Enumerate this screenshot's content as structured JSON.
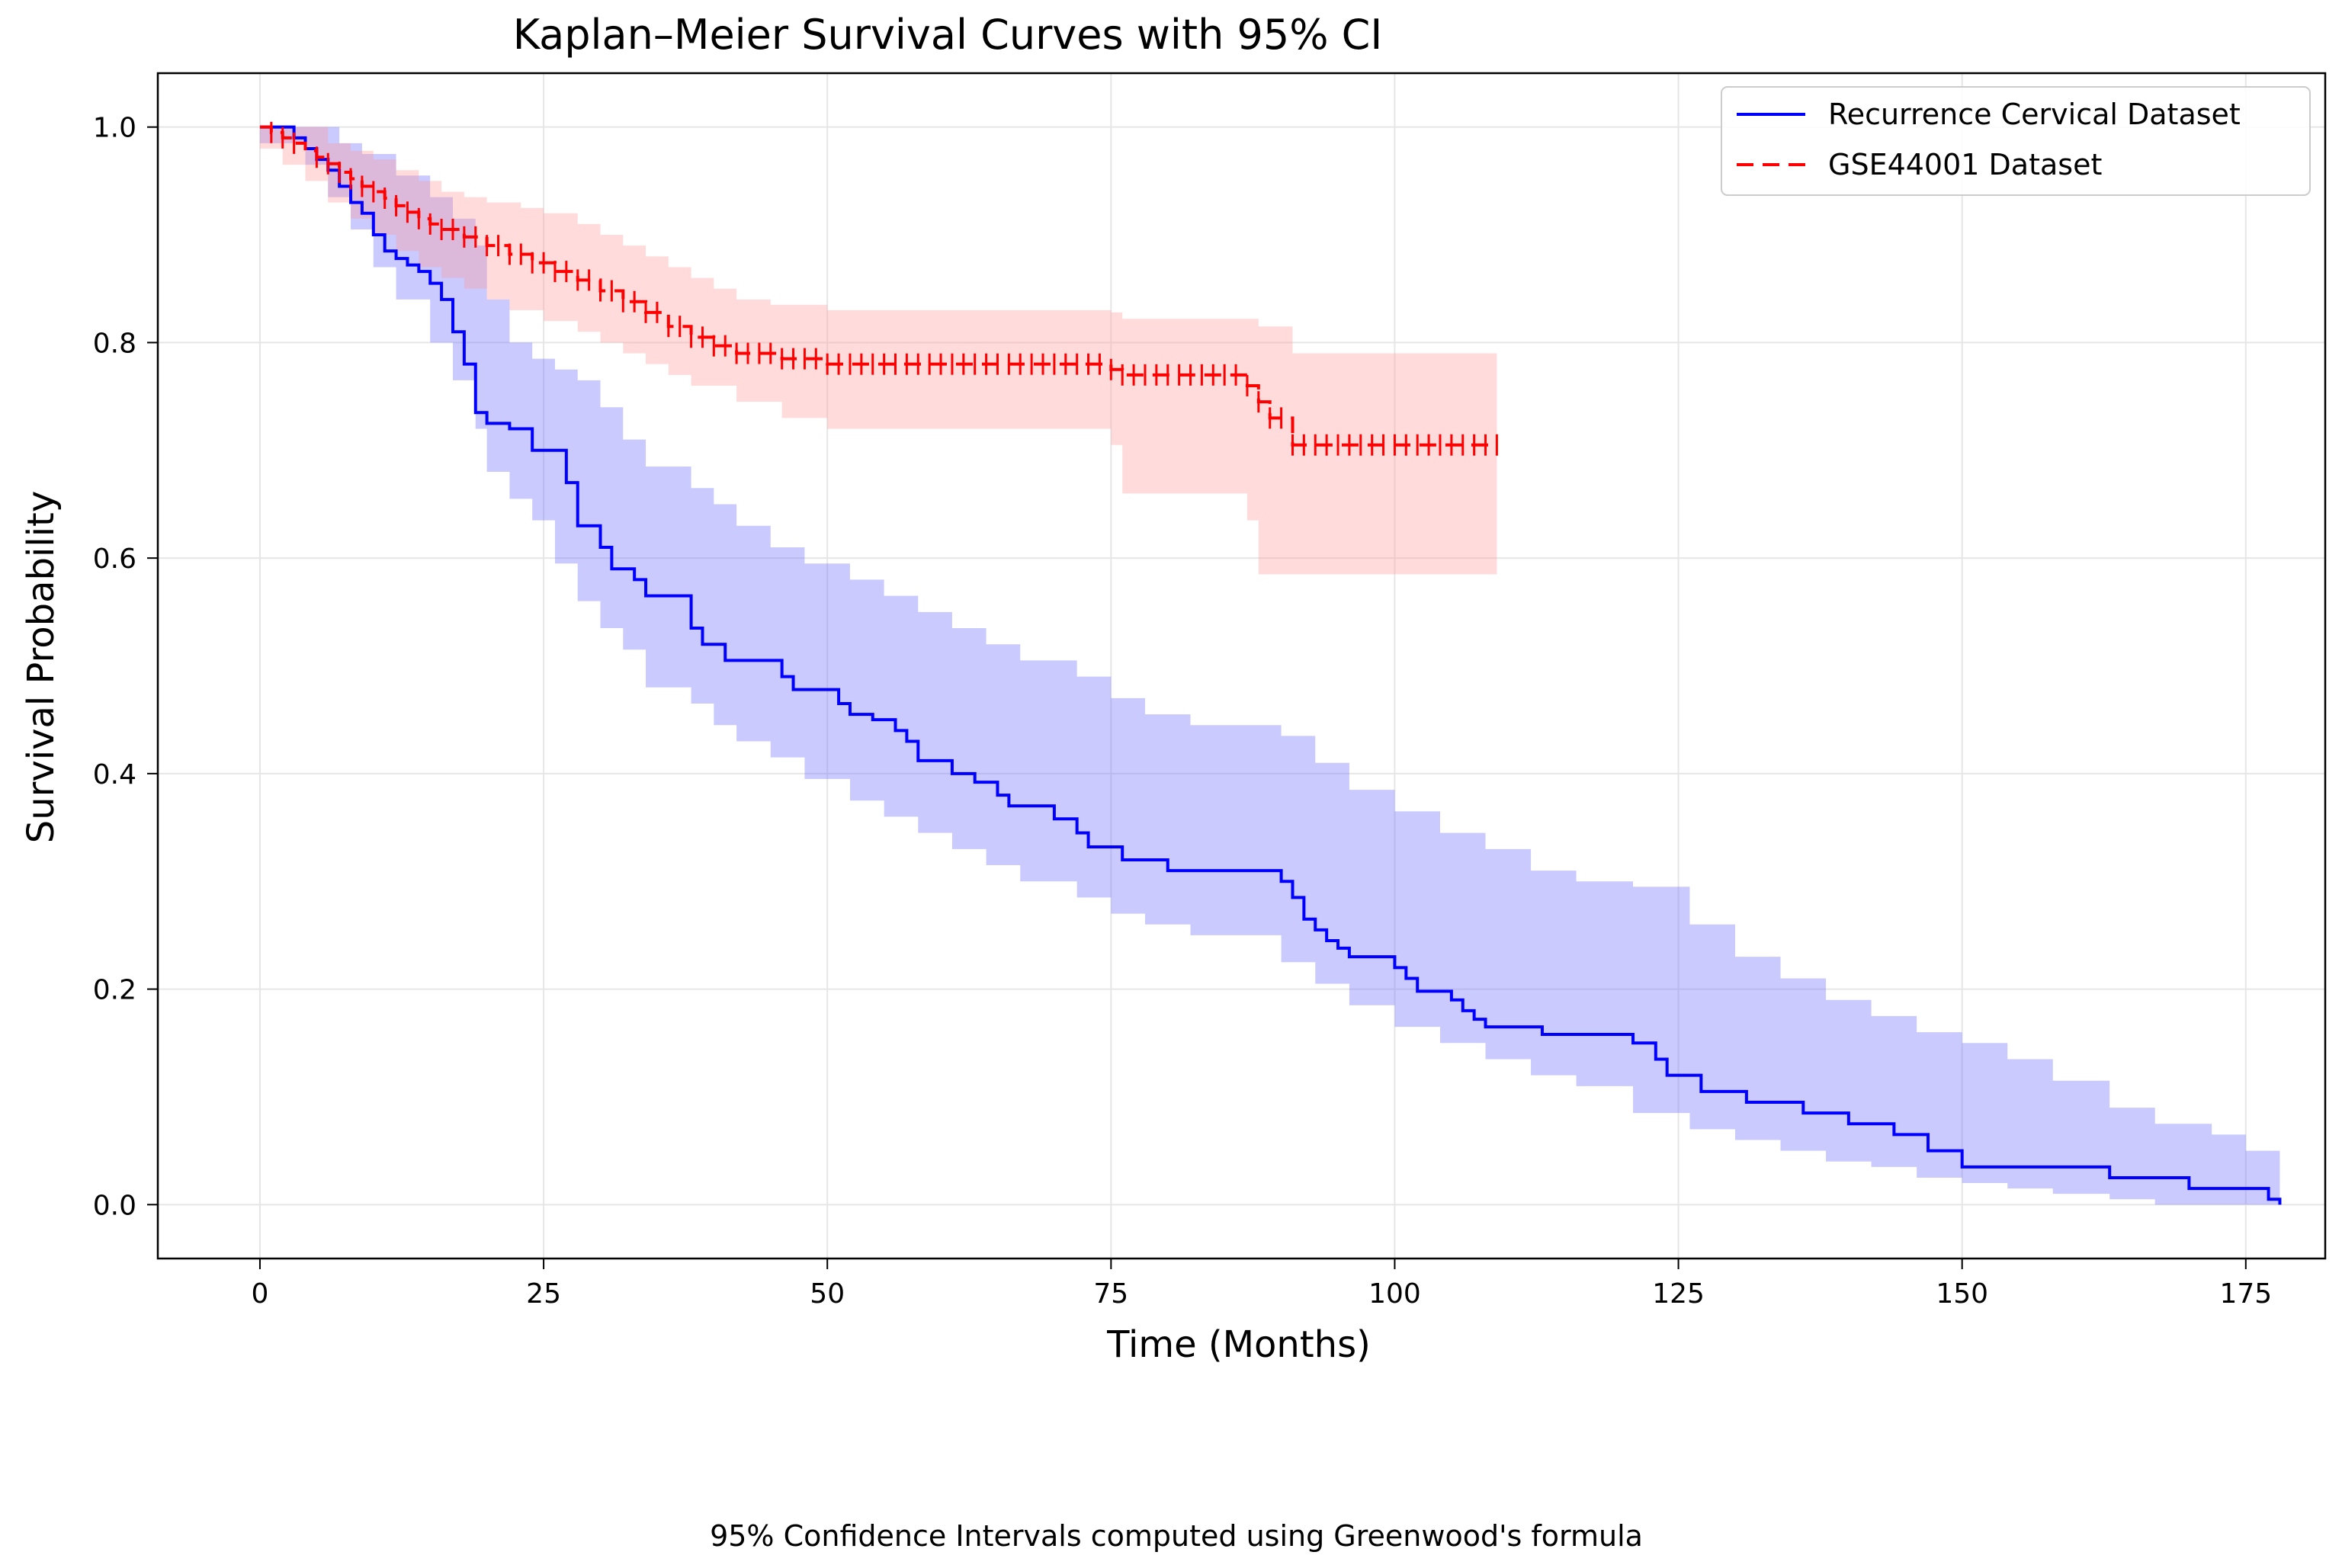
{
  "chart_data": {
    "type": "line",
    "title": "Kaplan–Meier Survival Curves with 95% CI",
    "xlabel": "Time (Months)",
    "ylabel": "Survival Probability",
    "xlim": [
      -9,
      182
    ],
    "ylim": [
      -0.05,
      1.05
    ],
    "xticks": [
      0,
      25,
      50,
      75,
      100,
      125,
      150,
      175
    ],
    "yticks": [
      0.0,
      0.2,
      0.4,
      0.6,
      0.8,
      1.0
    ],
    "xtick_labels": [
      "0",
      "25",
      "50",
      "75",
      "100",
      "125",
      "150",
      "175"
    ],
    "ytick_labels": [
      "0.0",
      "0.2",
      "0.4",
      "0.6",
      "0.8",
      "1.0"
    ],
    "grid": true,
    "legend_position": "top-right",
    "series": [
      {
        "name": "Recurrence Cervical Dataset",
        "color": "#0000ff",
        "ci_color": "#6666ff",
        "line_style": "solid",
        "step": [
          [
            0,
            1.0
          ],
          [
            3,
            0.99
          ],
          [
            4,
            0.98
          ],
          [
            5,
            0.97
          ],
          [
            6,
            0.96
          ],
          [
            7,
            0.945
          ],
          [
            8,
            0.93
          ],
          [
            9,
            0.92
          ],
          [
            10,
            0.9
          ],
          [
            11,
            0.885
          ],
          [
            12,
            0.878
          ],
          [
            13,
            0.872
          ],
          [
            14,
            0.866
          ],
          [
            15,
            0.855
          ],
          [
            16,
            0.84
          ],
          [
            17,
            0.81
          ],
          [
            18,
            0.78
          ],
          [
            19,
            0.735
          ],
          [
            20,
            0.725
          ],
          [
            22,
            0.72
          ],
          [
            24,
            0.7
          ],
          [
            27,
            0.67
          ],
          [
            28,
            0.63
          ],
          [
            30,
            0.61
          ],
          [
            31,
            0.59
          ],
          [
            33,
            0.58
          ],
          [
            34,
            0.565
          ],
          [
            38,
            0.535
          ],
          [
            39,
            0.52
          ],
          [
            41,
            0.505
          ],
          [
            46,
            0.49
          ],
          [
            47,
            0.478
          ],
          [
            51,
            0.465
          ],
          [
            52,
            0.455
          ],
          [
            54,
            0.45
          ],
          [
            56,
            0.44
          ],
          [
            57,
            0.43
          ],
          [
            58,
            0.412
          ],
          [
            61,
            0.4
          ],
          [
            63,
            0.392
          ],
          [
            65,
            0.38
          ],
          [
            66,
            0.37
          ],
          [
            70,
            0.358
          ],
          [
            72,
            0.345
          ],
          [
            73,
            0.332
          ],
          [
            76,
            0.32
          ],
          [
            80,
            0.31
          ],
          [
            90,
            0.3
          ],
          [
            91,
            0.285
          ],
          [
            92,
            0.265
          ],
          [
            93,
            0.255
          ],
          [
            94,
            0.245
          ],
          [
            95,
            0.238
          ],
          [
            96,
            0.23
          ],
          [
            100,
            0.22
          ],
          [
            101,
            0.21
          ],
          [
            102,
            0.198
          ],
          [
            105,
            0.19
          ],
          [
            106,
            0.18
          ],
          [
            107,
            0.172
          ],
          [
            108,
            0.165
          ],
          [
            113,
            0.158
          ],
          [
            121,
            0.15
          ],
          [
            123,
            0.135
          ],
          [
            124,
            0.12
          ],
          [
            127,
            0.105
          ],
          [
            131,
            0.095
          ],
          [
            136,
            0.085
          ],
          [
            140,
            0.075
          ],
          [
            144,
            0.065
          ],
          [
            147,
            0.05
          ],
          [
            150,
            0.035
          ],
          [
            163,
            0.025
          ],
          [
            170,
            0.015
          ],
          [
            177,
            0.005
          ],
          [
            178,
            0.0
          ]
        ],
        "ci_upper": [
          [
            0,
            1.0
          ],
          [
            5,
            1.0
          ],
          [
            7,
            0.985
          ],
          [
            9,
            0.975
          ],
          [
            12,
            0.955
          ],
          [
            15,
            0.935
          ],
          [
            17,
            0.915
          ],
          [
            19,
            0.89
          ],
          [
            20,
            0.84
          ],
          [
            22,
            0.8
          ],
          [
            24,
            0.785
          ],
          [
            26,
            0.775
          ],
          [
            28,
            0.765
          ],
          [
            30,
            0.74
          ],
          [
            32,
            0.71
          ],
          [
            34,
            0.685
          ],
          [
            38,
            0.665
          ],
          [
            40,
            0.65
          ],
          [
            42,
            0.63
          ],
          [
            45,
            0.61
          ],
          [
            48,
            0.595
          ],
          [
            52,
            0.58
          ],
          [
            55,
            0.565
          ],
          [
            58,
            0.55
          ],
          [
            61,
            0.535
          ],
          [
            64,
            0.52
          ],
          [
            67,
            0.505
          ],
          [
            72,
            0.49
          ],
          [
            75,
            0.47
          ],
          [
            78,
            0.455
          ],
          [
            82,
            0.445
          ],
          [
            90,
            0.435
          ],
          [
            93,
            0.41
          ],
          [
            96,
            0.385
          ],
          [
            100,
            0.365
          ],
          [
            104,
            0.345
          ],
          [
            108,
            0.33
          ],
          [
            112,
            0.31
          ],
          [
            116,
            0.3
          ],
          [
            121,
            0.295
          ],
          [
            126,
            0.26
          ],
          [
            130,
            0.23
          ],
          [
            134,
            0.21
          ],
          [
            138,
            0.19
          ],
          [
            142,
            0.175
          ],
          [
            146,
            0.16
          ],
          [
            150,
            0.15
          ],
          [
            154,
            0.135
          ],
          [
            158,
            0.115
          ],
          [
            163,
            0.09
          ],
          [
            167,
            0.075
          ],
          [
            172,
            0.065
          ],
          [
            175,
            0.05
          ],
          [
            178,
            0.04
          ]
        ],
        "ci_lower": [
          [
            0,
            1.0
          ],
          [
            4,
            0.985
          ],
          [
            6,
            0.965
          ],
          [
            8,
            0.935
          ],
          [
            10,
            0.905
          ],
          [
            12,
            0.87
          ],
          [
            15,
            0.84
          ],
          [
            17,
            0.8
          ],
          [
            19,
            0.765
          ],
          [
            20,
            0.72
          ],
          [
            22,
            0.68
          ],
          [
            24,
            0.655
          ],
          [
            26,
            0.635
          ],
          [
            28,
            0.595
          ],
          [
            30,
            0.56
          ],
          [
            32,
            0.535
          ],
          [
            34,
            0.515
          ],
          [
            38,
            0.48
          ],
          [
            40,
            0.465
          ],
          [
            42,
            0.445
          ],
          [
            45,
            0.43
          ],
          [
            48,
            0.415
          ],
          [
            52,
            0.395
          ],
          [
            55,
            0.375
          ],
          [
            58,
            0.36
          ],
          [
            61,
            0.345
          ],
          [
            64,
            0.33
          ],
          [
            67,
            0.315
          ],
          [
            72,
            0.3
          ],
          [
            75,
            0.285
          ],
          [
            78,
            0.27
          ],
          [
            82,
            0.26
          ],
          [
            90,
            0.25
          ],
          [
            93,
            0.225
          ],
          [
            96,
            0.205
          ],
          [
            100,
            0.185
          ],
          [
            104,
            0.165
          ],
          [
            108,
            0.15
          ],
          [
            112,
            0.135
          ],
          [
            116,
            0.12
          ],
          [
            121,
            0.11
          ],
          [
            126,
            0.085
          ],
          [
            130,
            0.07
          ],
          [
            134,
            0.06
          ],
          [
            138,
            0.05
          ],
          [
            142,
            0.04
          ],
          [
            146,
            0.035
          ],
          [
            150,
            0.025
          ],
          [
            154,
            0.02
          ],
          [
            158,
            0.015
          ],
          [
            163,
            0.01
          ],
          [
            167,
            0.005
          ],
          [
            172,
            0.0
          ],
          [
            178,
            0.0
          ]
        ]
      },
      {
        "name": "GSE44001 Dataset",
        "color": "#ff0000",
        "ci_color": "#ff9999",
        "line_style": "dashed",
        "step": [
          [
            0,
            1.0
          ],
          [
            1,
            0.995
          ],
          [
            2,
            0.99
          ],
          [
            3,
            0.985
          ],
          [
            4,
            0.978
          ],
          [
            5,
            0.972
          ],
          [
            6,
            0.966
          ],
          [
            7,
            0.958
          ],
          [
            8,
            0.952
          ],
          [
            9,
            0.945
          ],
          [
            10,
            0.94
          ],
          [
            11,
            0.934
          ],
          [
            12,
            0.927
          ],
          [
            13,
            0.921
          ],
          [
            14,
            0.915
          ],
          [
            15,
            0.91
          ],
          [
            16,
            0.905
          ],
          [
            18,
            0.898
          ],
          [
            20,
            0.89
          ],
          [
            22,
            0.882
          ],
          [
            24,
            0.874
          ],
          [
            26,
            0.866
          ],
          [
            28,
            0.858
          ],
          [
            30,
            0.848
          ],
          [
            32,
            0.838
          ],
          [
            34,
            0.828
          ],
          [
            36,
            0.815
          ],
          [
            38,
            0.805
          ],
          [
            40,
            0.797
          ],
          [
            42,
            0.79
          ],
          [
            46,
            0.785
          ],
          [
            50,
            0.78
          ],
          [
            60,
            0.78
          ],
          [
            75,
            0.775
          ],
          [
            76,
            0.77
          ],
          [
            87,
            0.76
          ],
          [
            88,
            0.745
          ],
          [
            89,
            0.73
          ],
          [
            91,
            0.705
          ],
          [
            109,
            0.705
          ]
        ],
        "ci_upper": [
          [
            0,
            1.0
          ],
          [
            4,
            1.0
          ],
          [
            6,
            0.985
          ],
          [
            8,
            0.978
          ],
          [
            10,
            0.97
          ],
          [
            12,
            0.96
          ],
          [
            14,
            0.95
          ],
          [
            16,
            0.94
          ],
          [
            18,
            0.935
          ],
          [
            20,
            0.93
          ],
          [
            23,
            0.925
          ],
          [
            25,
            0.92
          ],
          [
            28,
            0.91
          ],
          [
            30,
            0.9
          ],
          [
            32,
            0.89
          ],
          [
            34,
            0.88
          ],
          [
            36,
            0.87
          ],
          [
            38,
            0.86
          ],
          [
            40,
            0.85
          ],
          [
            42,
            0.84
          ],
          [
            45,
            0.835
          ],
          [
            50,
            0.83
          ],
          [
            75,
            0.828
          ],
          [
            76,
            0.822
          ],
          [
            88,
            0.815
          ],
          [
            91,
            0.79
          ],
          [
            109,
            0.79
          ]
        ],
        "ci_lower": [
          [
            0,
            1.0
          ],
          [
            2,
            0.98
          ],
          [
            4,
            0.965
          ],
          [
            6,
            0.95
          ],
          [
            8,
            0.93
          ],
          [
            10,
            0.915
          ],
          [
            12,
            0.9
          ],
          [
            14,
            0.885
          ],
          [
            16,
            0.87
          ],
          [
            18,
            0.86
          ],
          [
            20,
            0.85
          ],
          [
            22,
            0.84
          ],
          [
            25,
            0.83
          ],
          [
            28,
            0.82
          ],
          [
            30,
            0.81
          ],
          [
            32,
            0.8
          ],
          [
            34,
            0.79
          ],
          [
            36,
            0.78
          ],
          [
            38,
            0.77
          ],
          [
            42,
            0.76
          ],
          [
            46,
            0.745
          ],
          [
            50,
            0.73
          ],
          [
            75,
            0.72
          ],
          [
            76,
            0.705
          ],
          [
            87,
            0.66
          ],
          [
            88,
            0.635
          ],
          [
            91,
            0.585
          ],
          [
            109,
            0.585
          ]
        ],
        "censored": [
          1,
          2,
          3,
          5,
          6,
          7,
          8,
          9,
          10,
          11,
          12,
          13,
          14,
          15,
          16,
          17,
          18,
          19,
          20,
          21,
          22,
          23,
          24,
          25,
          26,
          27,
          28,
          29,
          30,
          31,
          32,
          33,
          34,
          35,
          36,
          37,
          38,
          39,
          40,
          41,
          42,
          43,
          44,
          45,
          46,
          47,
          48,
          49,
          50,
          51,
          52,
          53,
          54,
          55,
          56,
          57,
          58,
          59,
          60,
          61,
          62,
          63,
          64,
          65,
          66,
          67,
          68,
          69,
          70,
          71,
          72,
          73,
          74,
          75,
          76,
          77,
          78,
          79,
          80,
          81,
          82,
          83,
          84,
          85,
          86,
          87,
          88,
          89,
          90,
          91,
          92,
          93,
          94,
          95,
          96,
          97,
          98,
          99,
          100,
          101,
          102,
          103,
          104,
          105,
          106,
          107,
          108,
          109
        ]
      }
    ],
    "footnote": "95% Confidence Intervals computed using Greenwood's formula"
  },
  "colors": {
    "grid": "#e6e6e6",
    "axis": "#000000",
    "background": "#ffffff"
  }
}
